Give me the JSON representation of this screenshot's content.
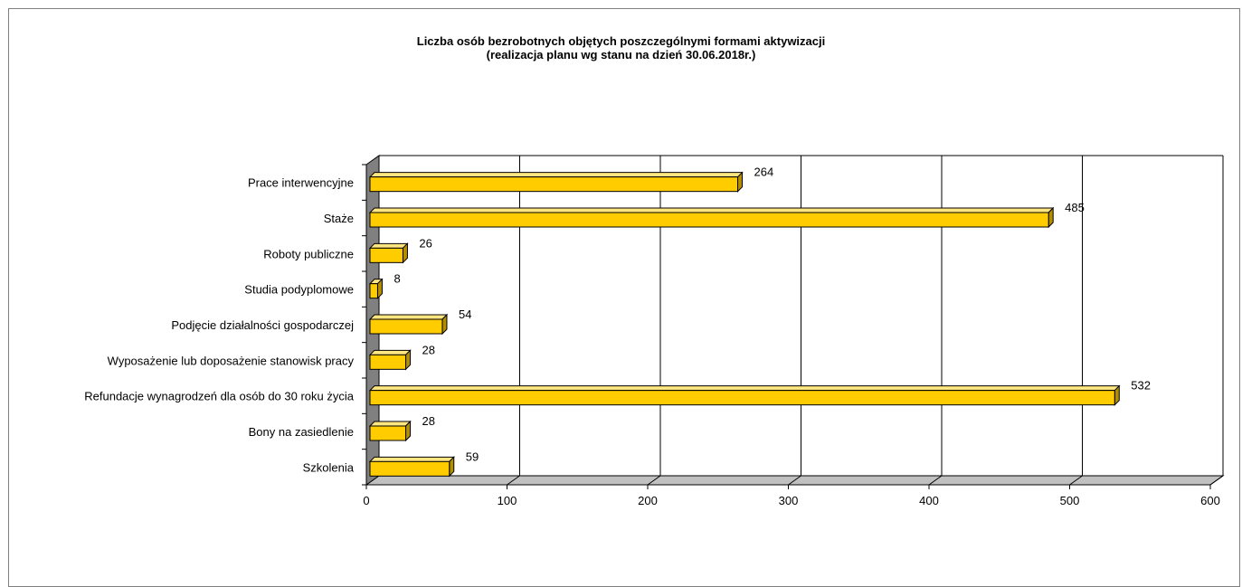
{
  "chart_data": {
    "type": "bar",
    "orientation": "horizontal",
    "title": "Liczba osób bezrobotnych objętych poszczególnymi formami aktywizacji",
    "subtitle": "(realizacja planu wg stanu na dzień 30.06.2018r.)",
    "xlabel": "",
    "ylabel": "",
    "xlim": [
      0,
      600
    ],
    "xticks": [
      "0",
      "100",
      "200",
      "300",
      "400",
      "500",
      "600"
    ],
    "grid": true,
    "legend": "none",
    "bar_color": "#FFCC00",
    "categories": [
      "Prace interwencyjne",
      "Staże",
      "Roboty publiczne",
      "Studia podyplomowe",
      "Podjęcie działalności gospodarczej",
      "Wyposażenie lub doposażenie stanowisk pracy",
      "Refundacje wynagrodzeń dla osób do 30 roku życia",
      "Bony na zasiedlenie",
      "Szkolenia"
    ],
    "values": [
      264,
      485,
      26,
      8,
      54,
      28,
      532,
      28,
      59
    ]
  }
}
